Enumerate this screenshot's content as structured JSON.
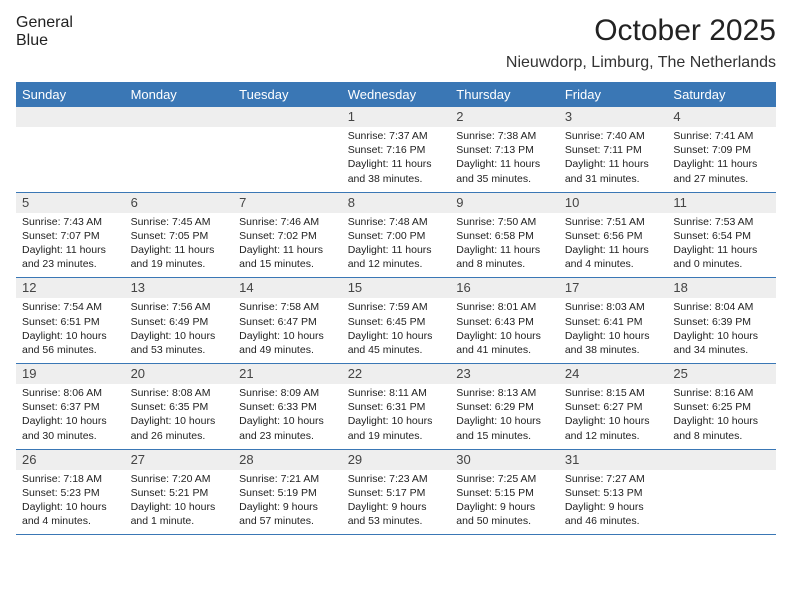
{
  "branding": {
    "word1": "General",
    "word2": "Blue",
    "brand_color": "#3a77b5",
    "text_color": "#555555"
  },
  "header": {
    "title": "October 2025",
    "location": "Nieuwdorp, Limburg, The Netherlands",
    "title_fontsize": 30,
    "subtitle_fontsize": 16
  },
  "calendar": {
    "header_bg": "#3a77b5",
    "header_text_color": "#ffffff",
    "num_strip_bg": "#eeeeee",
    "divider_color": "#3a77b5",
    "body_fontsize": 10.5,
    "daynum_fontsize": 13,
    "days_of_week": [
      "Sunday",
      "Monday",
      "Tuesday",
      "Wednesday",
      "Thursday",
      "Friday",
      "Saturday"
    ],
    "weeks": [
      {
        "nums": [
          "",
          "",
          "",
          "1",
          "2",
          "3",
          "4"
        ],
        "cells": [
          {
            "sunrise": "",
            "sunset": "",
            "daylight": ""
          },
          {
            "sunrise": "",
            "sunset": "",
            "daylight": ""
          },
          {
            "sunrise": "",
            "sunset": "",
            "daylight": ""
          },
          {
            "sunrise": "Sunrise: 7:37 AM",
            "sunset": "Sunset: 7:16 PM",
            "daylight": "Daylight: 11 hours and 38 minutes."
          },
          {
            "sunrise": "Sunrise: 7:38 AM",
            "sunset": "Sunset: 7:13 PM",
            "daylight": "Daylight: 11 hours and 35 minutes."
          },
          {
            "sunrise": "Sunrise: 7:40 AM",
            "sunset": "Sunset: 7:11 PM",
            "daylight": "Daylight: 11 hours and 31 minutes."
          },
          {
            "sunrise": "Sunrise: 7:41 AM",
            "sunset": "Sunset: 7:09 PM",
            "daylight": "Daylight: 11 hours and 27 minutes."
          }
        ]
      },
      {
        "nums": [
          "5",
          "6",
          "7",
          "8",
          "9",
          "10",
          "11"
        ],
        "cells": [
          {
            "sunrise": "Sunrise: 7:43 AM",
            "sunset": "Sunset: 7:07 PM",
            "daylight": "Daylight: 11 hours and 23 minutes."
          },
          {
            "sunrise": "Sunrise: 7:45 AM",
            "sunset": "Sunset: 7:05 PM",
            "daylight": "Daylight: 11 hours and 19 minutes."
          },
          {
            "sunrise": "Sunrise: 7:46 AM",
            "sunset": "Sunset: 7:02 PM",
            "daylight": "Daylight: 11 hours and 15 minutes."
          },
          {
            "sunrise": "Sunrise: 7:48 AM",
            "sunset": "Sunset: 7:00 PM",
            "daylight": "Daylight: 11 hours and 12 minutes."
          },
          {
            "sunrise": "Sunrise: 7:50 AM",
            "sunset": "Sunset: 6:58 PM",
            "daylight": "Daylight: 11 hours and 8 minutes."
          },
          {
            "sunrise": "Sunrise: 7:51 AM",
            "sunset": "Sunset: 6:56 PM",
            "daylight": "Daylight: 11 hours and 4 minutes."
          },
          {
            "sunrise": "Sunrise: 7:53 AM",
            "sunset": "Sunset: 6:54 PM",
            "daylight": "Daylight: 11 hours and 0 minutes."
          }
        ]
      },
      {
        "nums": [
          "12",
          "13",
          "14",
          "15",
          "16",
          "17",
          "18"
        ],
        "cells": [
          {
            "sunrise": "Sunrise: 7:54 AM",
            "sunset": "Sunset: 6:51 PM",
            "daylight": "Daylight: 10 hours and 56 minutes."
          },
          {
            "sunrise": "Sunrise: 7:56 AM",
            "sunset": "Sunset: 6:49 PM",
            "daylight": "Daylight: 10 hours and 53 minutes."
          },
          {
            "sunrise": "Sunrise: 7:58 AM",
            "sunset": "Sunset: 6:47 PM",
            "daylight": "Daylight: 10 hours and 49 minutes."
          },
          {
            "sunrise": "Sunrise: 7:59 AM",
            "sunset": "Sunset: 6:45 PM",
            "daylight": "Daylight: 10 hours and 45 minutes."
          },
          {
            "sunrise": "Sunrise: 8:01 AM",
            "sunset": "Sunset: 6:43 PM",
            "daylight": "Daylight: 10 hours and 41 minutes."
          },
          {
            "sunrise": "Sunrise: 8:03 AM",
            "sunset": "Sunset: 6:41 PM",
            "daylight": "Daylight: 10 hours and 38 minutes."
          },
          {
            "sunrise": "Sunrise: 8:04 AM",
            "sunset": "Sunset: 6:39 PM",
            "daylight": "Daylight: 10 hours and 34 minutes."
          }
        ]
      },
      {
        "nums": [
          "19",
          "20",
          "21",
          "22",
          "23",
          "24",
          "25"
        ],
        "cells": [
          {
            "sunrise": "Sunrise: 8:06 AM",
            "sunset": "Sunset: 6:37 PM",
            "daylight": "Daylight: 10 hours and 30 minutes."
          },
          {
            "sunrise": "Sunrise: 8:08 AM",
            "sunset": "Sunset: 6:35 PM",
            "daylight": "Daylight: 10 hours and 26 minutes."
          },
          {
            "sunrise": "Sunrise: 8:09 AM",
            "sunset": "Sunset: 6:33 PM",
            "daylight": "Daylight: 10 hours and 23 minutes."
          },
          {
            "sunrise": "Sunrise: 8:11 AM",
            "sunset": "Sunset: 6:31 PM",
            "daylight": "Daylight: 10 hours and 19 minutes."
          },
          {
            "sunrise": "Sunrise: 8:13 AM",
            "sunset": "Sunset: 6:29 PM",
            "daylight": "Daylight: 10 hours and 15 minutes."
          },
          {
            "sunrise": "Sunrise: 8:15 AM",
            "sunset": "Sunset: 6:27 PM",
            "daylight": "Daylight: 10 hours and 12 minutes."
          },
          {
            "sunrise": "Sunrise: 8:16 AM",
            "sunset": "Sunset: 6:25 PM",
            "daylight": "Daylight: 10 hours and 8 minutes."
          }
        ]
      },
      {
        "nums": [
          "26",
          "27",
          "28",
          "29",
          "30",
          "31",
          ""
        ],
        "cells": [
          {
            "sunrise": "Sunrise: 7:18 AM",
            "sunset": "Sunset: 5:23 PM",
            "daylight": "Daylight: 10 hours and 4 minutes."
          },
          {
            "sunrise": "Sunrise: 7:20 AM",
            "sunset": "Sunset: 5:21 PM",
            "daylight": "Daylight: 10 hours and 1 minute."
          },
          {
            "sunrise": "Sunrise: 7:21 AM",
            "sunset": "Sunset: 5:19 PM",
            "daylight": "Daylight: 9 hours and 57 minutes."
          },
          {
            "sunrise": "Sunrise: 7:23 AM",
            "sunset": "Sunset: 5:17 PM",
            "daylight": "Daylight: 9 hours and 53 minutes."
          },
          {
            "sunrise": "Sunrise: 7:25 AM",
            "sunset": "Sunset: 5:15 PM",
            "daylight": "Daylight: 9 hours and 50 minutes."
          },
          {
            "sunrise": "Sunrise: 7:27 AM",
            "sunset": "Sunset: 5:13 PM",
            "daylight": "Daylight: 9 hours and 46 minutes."
          },
          {
            "sunrise": "",
            "sunset": "",
            "daylight": ""
          }
        ]
      }
    ]
  }
}
